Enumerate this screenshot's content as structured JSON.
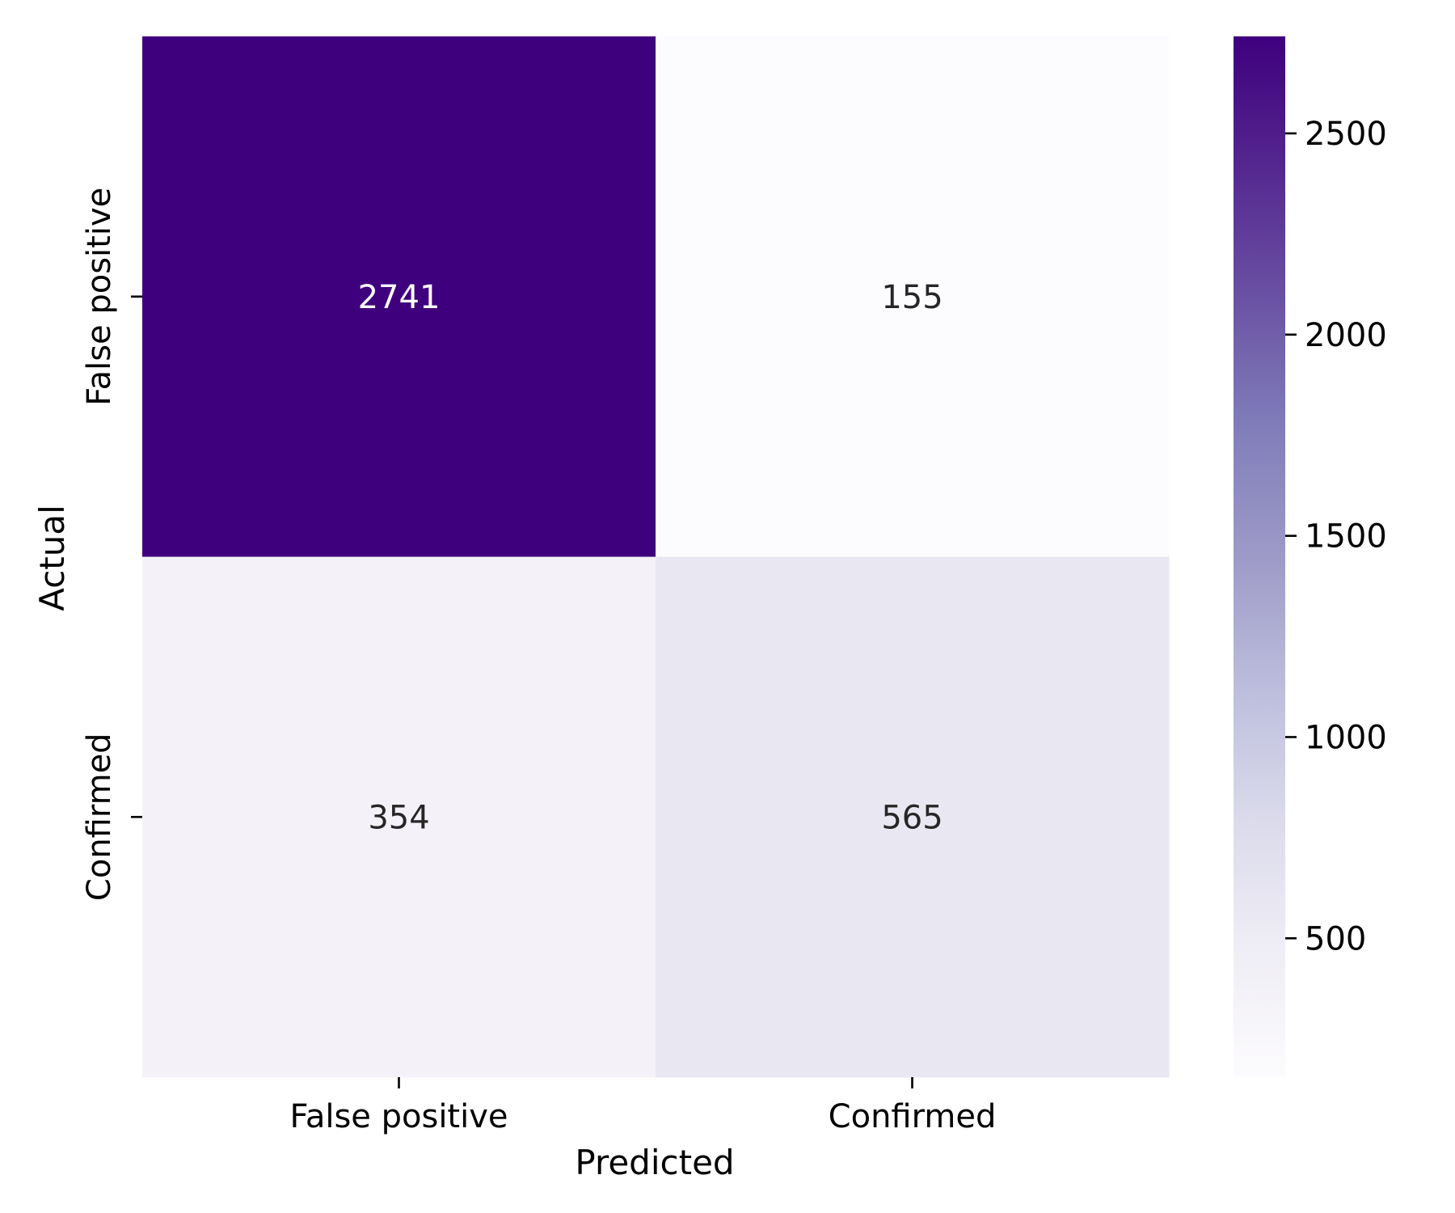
{
  "chart_data": {
    "type": "heatmap",
    "title": "",
    "xlabel": "Predicted",
    "ylabel": "Actual",
    "x_categories": [
      "False positive",
      "Confirmed"
    ],
    "y_categories": [
      "False positive",
      "Confirmed"
    ],
    "values": [
      [
        2741,
        155
      ],
      [
        354,
        565
      ]
    ],
    "colormap": "Purples",
    "colorbar": {
      "min": 155,
      "max": 2741,
      "ticks": [
        500,
        1000,
        1500,
        2000,
        2500
      ],
      "tick_labels": [
        "500",
        "1000",
        "1500",
        "2000",
        "2500"
      ]
    },
    "colors": {
      "colormap_stops": [
        "#fcfbfd",
        "#efedf5",
        "#dadaeb",
        "#bcbddc",
        "#9e9ac8",
        "#807dba",
        "#6a51a3",
        "#54278f",
        "#3f007d"
      ],
      "dark_text": "#262626",
      "light_text": "#ffffff"
    }
  }
}
